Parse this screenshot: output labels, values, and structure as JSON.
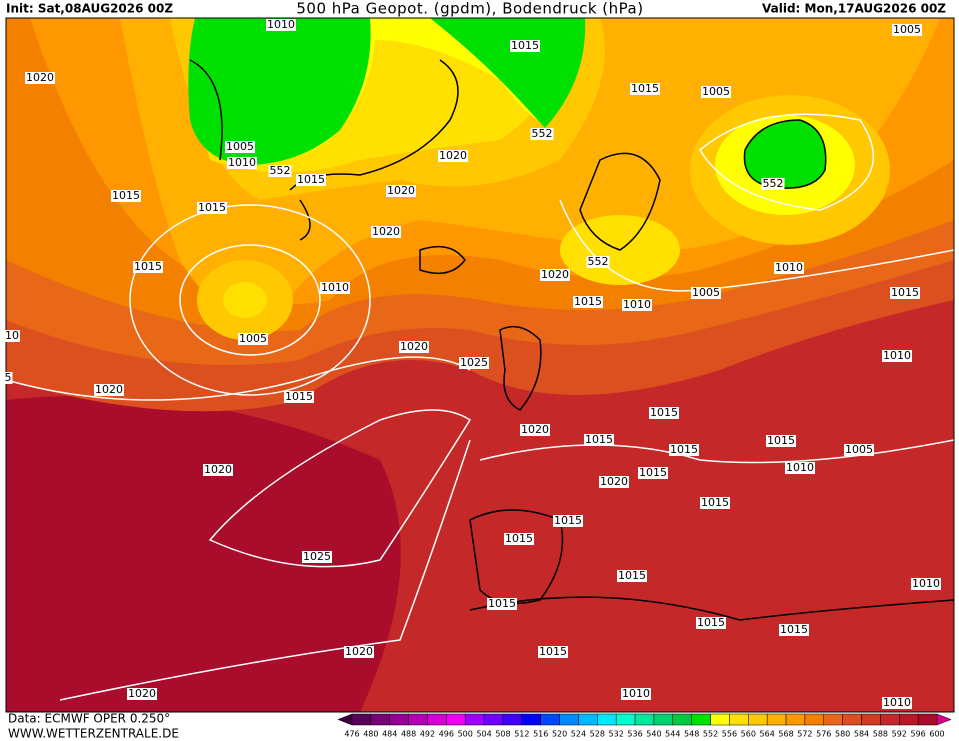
{
  "header": {
    "init": "Init: Sat,08AUG2026 00Z",
    "title": "500 hPa Geopot. (gpdm), Bodendruck (hPa)",
    "valid": "Valid: Mon,17AUG2026 00Z"
  },
  "map": {
    "isobar_labels": [
      "1010",
      "1015",
      "1020",
      "1005",
      "1015",
      "1005",
      "1005",
      "1010",
      "552",
      "1015",
      "1020",
      "552",
      "552",
      "1015",
      "1015",
      "1020",
      "1020",
      "1015",
      "552",
      "1010",
      "1010",
      "1020",
      "1015",
      "1010",
      "1005",
      "1015",
      "10",
      "1005",
      "1020",
      "1010",
      "1025",
      "5",
      "1020",
      "1015",
      "1015",
      "1020",
      "1015",
      "1015",
      "1015",
      "1005",
      "1010",
      "1015",
      "1020",
      "1020",
      "1015",
      "1015",
      "1015",
      "1025",
      "1015",
      "1010",
      "1015",
      "1015",
      "1015",
      "1015",
      "1020",
      "1020",
      "1010",
      "1010"
    ]
  },
  "colorbar": {
    "labels": [
      476,
      480,
      484,
      488,
      492,
      496,
      500,
      504,
      508,
      512,
      516,
      520,
      524,
      528,
      532,
      536,
      540,
      544,
      548,
      552,
      556,
      560,
      564,
      568,
      572,
      576,
      580,
      584,
      588,
      592,
      596,
      600
    ],
    "colors": [
      "#3c003c",
      "#5a005a",
      "#780078",
      "#960096",
      "#b400b4",
      "#d200d2",
      "#f000f0",
      "#a000ff",
      "#7000ff",
      "#4000ff",
      "#0000ff",
      "#0048ff",
      "#0088ff",
      "#00b8ff",
      "#00e8ff",
      "#00ffd0",
      "#00e8a0",
      "#00d070",
      "#00c840",
      "#00e000",
      "#ffff00",
      "#ffe000",
      "#ffc800",
      "#ffb000",
      "#ff9800",
      "#f48000",
      "#e86818",
      "#dc5020",
      "#d03c22",
      "#c42828",
      "#b81828",
      "#aa0c2c",
      "#e0008c"
    ]
  },
  "footer": {
    "source": "Data: ECMWF OPER 0.250°",
    "site": "WWW.WETTERZENTRALE.DE"
  }
}
